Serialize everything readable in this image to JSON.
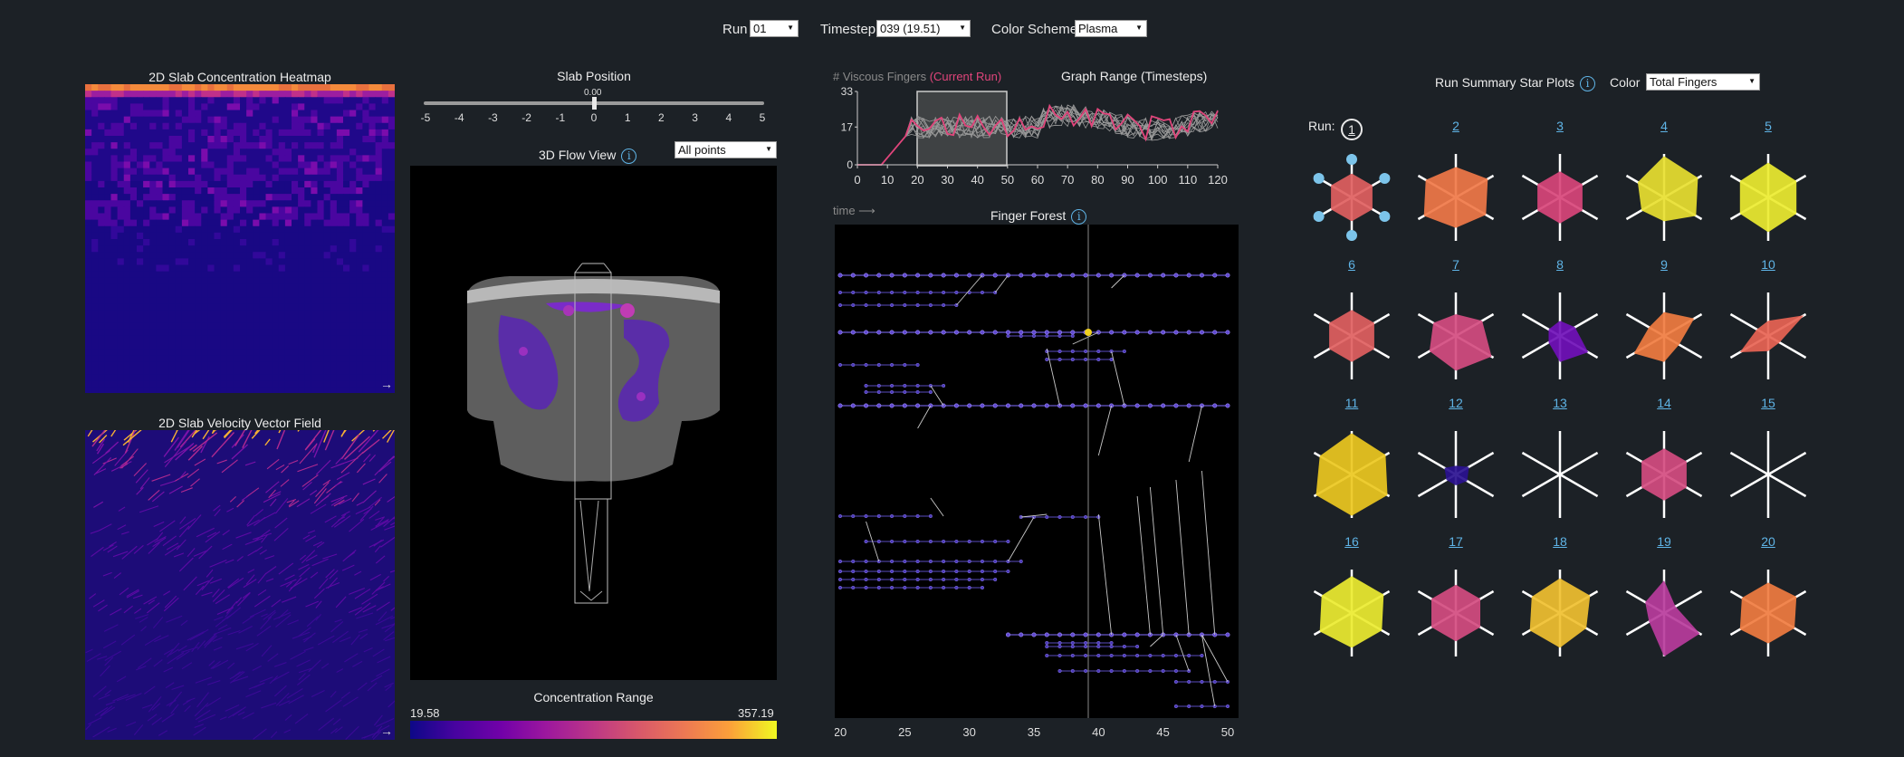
{
  "controls": {
    "run_label": "Run",
    "run_value": "01",
    "timestep_label": "Timestep",
    "timestep_value": "039 (19.51)",
    "scheme_label": "Color Scheme",
    "scheme_value": "Plasma"
  },
  "heatmap": {
    "title": "2D Slab Concentration Heatmap",
    "corner_icon": "arrow-right-icon"
  },
  "vector_field": {
    "title": "2D Slab Velocity Vector Field",
    "corner_icon": "arrow-right-icon"
  },
  "slab": {
    "title": "Slab Position",
    "value": "0.00",
    "ticks": [
      "-5",
      "-4",
      "-3",
      "-2",
      "-1",
      "0",
      "1",
      "2",
      "3",
      "4",
      "5"
    ]
  },
  "flow_view": {
    "title": "3D Flow View",
    "filter_value": "All points"
  },
  "conc_range": {
    "title": "Concentration Range",
    "min": "19.58",
    "max": "357.19"
  },
  "fingers_graph": {
    "label_prefix": "# Viscous Fingers",
    "label_current": "(Current Run)",
    "range_title": "Graph Range (Timesteps)",
    "y_ticks": [
      "33",
      "17",
      "0"
    ],
    "x_ticks": [
      "0",
      "10",
      "20",
      "30",
      "40",
      "50",
      "60",
      "70",
      "80",
      "90",
      "100",
      "110",
      "120"
    ],
    "selection": [
      20,
      50
    ],
    "current_color": "#e0457b"
  },
  "forest": {
    "time_label": "time ⟶",
    "title": "Finger Forest",
    "x_ticks": [
      "20",
      "25",
      "30",
      "35",
      "40",
      "45",
      "50"
    ],
    "current_time": 39.5
  },
  "summary": {
    "title": "Run Summary Star Plots",
    "color_label": "Color",
    "color_value": "Total Fingers",
    "run_label": "Run:",
    "runs": [
      {
        "id": "1",
        "color": "#e06060",
        "r": [
          0.55,
          0.55,
          0.55,
          0.55,
          0.55,
          0.55
        ],
        "selected": true
      },
      {
        "id": "2",
        "color": "#f07848",
        "r": [
          0.7,
          0.85,
          0.8,
          0.7,
          0.85,
          0.8
        ]
      },
      {
        "id": "3",
        "color": "#d8457a",
        "r": [
          0.6,
          0.6,
          0.6,
          0.6,
          0.6,
          0.6
        ]
      },
      {
        "id": "4",
        "color": "#e8e030",
        "r": [
          0.95,
          0.9,
          0.85,
          0.55,
          0.6,
          0.7
        ]
      },
      {
        "id": "5",
        "color": "#ecec30",
        "r": [
          0.8,
          0.75,
          0.75,
          0.8,
          0.75,
          0.75
        ]
      },
      {
        "id": "6",
        "color": "#e06060",
        "r": [
          0.6,
          0.6,
          0.6,
          0.6,
          0.6,
          0.6
        ]
      },
      {
        "id": "7",
        "color": "#d44c80",
        "r": [
          0.5,
          0.7,
          0.95,
          0.8,
          0.7,
          0.6
        ]
      },
      {
        "id": "8",
        "color": "#7010b8",
        "r": [
          0.35,
          0.4,
          0.75,
          0.6,
          0.3,
          0.3
        ]
      },
      {
        "id": "9",
        "color": "#f07c40",
        "r": [
          0.55,
          0.8,
          0.4,
          0.6,
          0.8,
          0.4
        ]
      },
      {
        "id": "10",
        "color": "#e86454",
        "r": [
          0.35,
          0.95,
          0.3,
          0.35,
          0.75,
          0.3
        ]
      },
      {
        "id": "11",
        "color": "#ecc820",
        "r": [
          0.95,
          0.9,
          0.95,
          0.95,
          0.95,
          0.85
        ]
      },
      {
        "id": "12",
        "color": "#2a1190",
        "r": [
          0.2,
          0.35,
          0.3,
          0.25,
          0.25,
          0.3
        ]
      },
      {
        "id": "13",
        "color": "#000000",
        "r": [
          0,
          0,
          0,
          0,
          0,
          0
        ]
      },
      {
        "id": "14",
        "color": "#d44c80",
        "r": [
          0.6,
          0.6,
          0.6,
          0.6,
          0.6,
          0.6
        ]
      },
      {
        "id": "15",
        "color": "#000000",
        "r": [
          0,
          0,
          0,
          0,
          0,
          0
        ]
      },
      {
        "id": "16",
        "color": "#ecec30",
        "r": [
          0.85,
          0.85,
          0.8,
          0.8,
          0.85,
          0.8
        ]
      },
      {
        "id": "17",
        "color": "#d44c80",
        "r": [
          0.65,
          0.65,
          0.65,
          0.65,
          0.65,
          0.65
        ]
      },
      {
        "id": "18",
        "color": "#f0c030",
        "r": [
          0.8,
          0.8,
          0.7,
          0.8,
          0.8,
          0.75
        ]
      },
      {
        "id": "19",
        "color": "#b83c9c",
        "r": [
          0.75,
          0.3,
          0.95,
          1.0,
          0.4,
          0.5
        ]
      },
      {
        "id": "20",
        "color": "#f07c40",
        "r": [
          0.7,
          0.75,
          0.7,
          0.7,
          0.75,
          0.7
        ]
      }
    ]
  }
}
